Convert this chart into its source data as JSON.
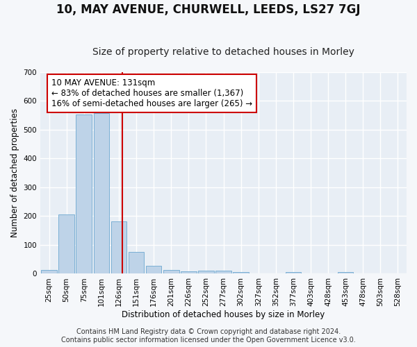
{
  "title": "10, MAY AVENUE, CHURWELL, LEEDS, LS27 7GJ",
  "subtitle": "Size of property relative to detached houses in Morley",
  "xlabel": "Distribution of detached houses by size in Morley",
  "ylabel": "Number of detached properties",
  "bin_labels": [
    "25sqm",
    "50sqm",
    "75sqm",
    "101sqm",
    "126sqm",
    "151sqm",
    "176sqm",
    "201sqm",
    "226sqm",
    "252sqm",
    "277sqm",
    "302sqm",
    "327sqm",
    "352sqm",
    "377sqm",
    "403sqm",
    "428sqm",
    "453sqm",
    "478sqm",
    "503sqm",
    "528sqm"
  ],
  "bin_values": [
    12,
    207,
    553,
    558,
    183,
    77,
    28,
    12,
    8,
    10,
    10,
    5,
    0,
    0,
    5,
    0,
    0,
    6,
    0,
    0,
    0
  ],
  "bar_color": "#bed3e8",
  "bar_edge_color": "#7aafd4",
  "vline_color": "#cc0000",
  "annotation_text": "10 MAY AVENUE: 131sqm\n← 83% of detached houses are smaller (1,367)\n16% of semi-detached houses are larger (265) →",
  "annotation_box_color": "#ffffff",
  "annotation_box_edge_color": "#cc0000",
  "ylim": [
    0,
    700
  ],
  "yticks": [
    0,
    100,
    200,
    300,
    400,
    500,
    600,
    700
  ],
  "bg_color": "#e8eef5",
  "grid_color": "#ffffff",
  "fig_bg_color": "#f5f7fa",
  "footer_text": "Contains HM Land Registry data © Crown copyright and database right 2024.\nContains public sector information licensed under the Open Government Licence v3.0.",
  "title_fontsize": 12,
  "subtitle_fontsize": 10,
  "annotation_fontsize": 8.5,
  "footer_fontsize": 7,
  "tick_fontsize": 7.5,
  "ylabel_fontsize": 8.5,
  "xlabel_fontsize": 8.5
}
